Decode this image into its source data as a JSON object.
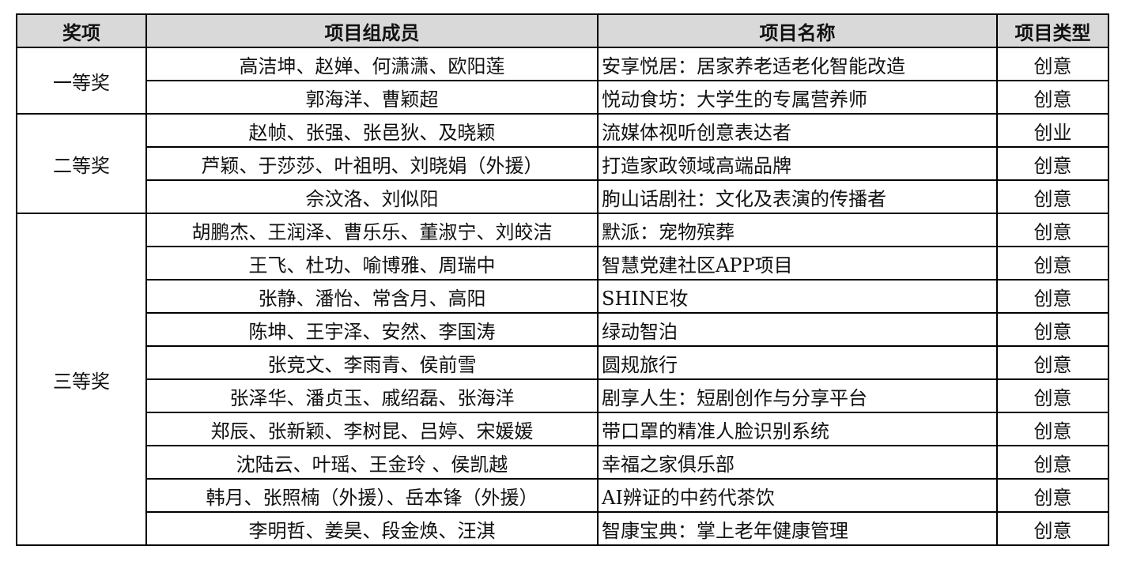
{
  "headers": [
    "奖项",
    "项目组成员",
    "项目名称",
    "项目类型"
  ],
  "groups": [
    {
      "award": "一等奖",
      "rows": [
        {
          "members": "高洁坤、赵婵、何潇潇、欧阳莲",
          "project": "安享悦居：居家养老适老化智能改造",
          "type": "创意"
        },
        {
          "members": "郭海洋、曹颖超",
          "project": "悦动食坊：大学生的专属营养师",
          "type": "创意"
        }
      ]
    },
    {
      "award": "二等奖",
      "rows": [
        {
          "members": "赵帧、张强、张邑狄、及晓颖",
          "project": "流媒体视听创意表达者",
          "type": "创业"
        },
        {
          "members": "芦颖、于莎莎、叶祖明、刘晓娟（外援）",
          "project": "打造家政领域高端品牌",
          "type": "创意"
        },
        {
          "members": "佘汶洛、刘似阳",
          "project": "朐山话剧社：文化及表演的传播者",
          "type": "创意"
        }
      ]
    },
    {
      "award": "三等奖",
      "rows": [
        {
          "members": "胡鹏杰、王润泽、曹乐乐、董淑宁、刘皎洁",
          "project": "默派：宠物殡葬",
          "type": "创意"
        },
        {
          "members": "王飞、杜功、喻博雅、周瑞中",
          "project": "智慧党建社区APP项目",
          "type": "创意"
        },
        {
          "members": "张静、潘怡、常含月、高阳",
          "project": "SHINE妆",
          "type": "创意"
        },
        {
          "members": "陈坤、王宇泽、安然、李国涛",
          "project": "绿动智泊",
          "type": "创意"
        },
        {
          "members": "张竞文、李雨青、侯前雪",
          "project": "圆规旅行",
          "type": "创意"
        },
        {
          "members": "张泽华、潘贞玉、戚绍磊、张海洋",
          "project": "剧享人生：短剧创作与分享平台",
          "type": "创意"
        },
        {
          "members": "郑辰、张新颖、李树昆、吕婷、宋媛媛",
          "project": "带口罩的精准人脸识别系统",
          "type": "创意"
        },
        {
          "members": "沈陆云、叶瑶、王金玲 、侯凯越",
          "project": "幸福之家俱乐部",
          "type": "创意"
        },
        {
          "members": "韩月、张照楠（外援）、岳本锋（外援）",
          "project": "AI辨证的中药代茶饮",
          "type": "创意"
        },
        {
          "members": "李明哲、姜昊、段金焕、汪淇",
          "project": "智康宝典：掌上老年健康管理",
          "type": "创意"
        }
      ]
    }
  ],
  "colors": {
    "header_bg": "#d9d9d9",
    "border": "#000000"
  }
}
